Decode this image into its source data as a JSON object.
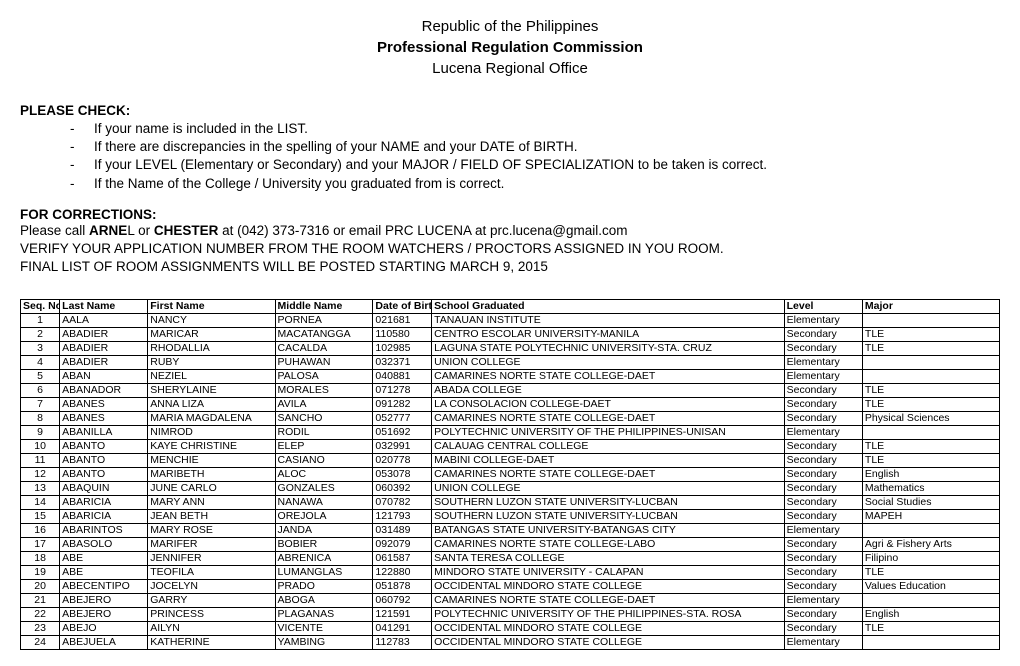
{
  "header": {
    "line1": "Republic of the Philippines",
    "line2": "Professional Regulation Commission",
    "line3": "Lucena Regional Office"
  },
  "check": {
    "title": "PLEASE CHECK:",
    "items": [
      "If your name is included in the LIST.",
      "If there are discrepancies in the spelling of your NAME and your DATE of BIRTH.",
      "If your LEVEL (Elementary or Secondary) and your MAJOR / FIELD OF SPECIALIZATION to be taken is correct.",
      "If the Name of the College / University you graduated from is correct."
    ]
  },
  "corrections": {
    "title": "FOR CORRECTIONS:",
    "line1_pre": "Please call ",
    "line1_b": "ARNE",
    "line1_mid": "L or ",
    "line1_b2": "CHESTER",
    "line1_post": " at (042) 373-7316 or email PRC LUCENA at prc.lucena@gmail.com",
    "line2": "VERIFY YOUR APPLICATION NUMBER FROM THE ROOM WATCHERS / PROCTORS ASSIGNED IN YOU ROOM.",
    "line3": "FINAL LIST OF ROOM ASSIGNMENTS WILL BE POSTED STARTING MARCH 9, 2015"
  },
  "table": {
    "columns": [
      "Seq. No",
      "Last Name",
      "First Name",
      "Middle Name",
      "Date of Birth",
      "School Graduated",
      "Level",
      "Major"
    ],
    "rows": [
      [
        "1",
        "AALA",
        "NANCY",
        "PORNEA",
        "021681",
        "TANAUAN INSTITUTE",
        "Elementary",
        ""
      ],
      [
        "2",
        "ABADIER",
        "MARICAR",
        "MACATANGGA",
        "110580",
        "CENTRO ESCOLAR UNIVERSITY-MANILA",
        "Secondary",
        "TLE"
      ],
      [
        "3",
        "ABADIER",
        "RHODALLIA",
        "CACALDA",
        "102985",
        "LAGUNA STATE POLYTECHNIC UNIVERSITY-STA. CRUZ",
        "Secondary",
        "TLE"
      ],
      [
        "4",
        "ABADIER",
        "RUBY",
        "PUHAWAN",
        "032371",
        "UNION COLLEGE",
        "Elementary",
        ""
      ],
      [
        "5",
        "ABAN",
        "NEZIEL",
        "PALOSA",
        "040881",
        "CAMARINES NORTE STATE COLLEGE-DAET",
        "Elementary",
        ""
      ],
      [
        "6",
        "ABANADOR",
        "SHERYLAINE",
        "MORALES",
        "071278",
        "ABADA COLLEGE",
        "Secondary",
        "TLE"
      ],
      [
        "7",
        "ABANES",
        "ANNA LIZA",
        "AVILA",
        "091282",
        "LA CONSOLACION COLLEGE-DAET",
        "Secondary",
        "TLE"
      ],
      [
        "8",
        "ABANES",
        "MARIA MAGDALENA",
        "SANCHO",
        "052777",
        "CAMARINES NORTE STATE COLLEGE-DAET",
        "Secondary",
        "Physical Sciences"
      ],
      [
        "9",
        "ABANILLA",
        "NIMROD",
        "RODIL",
        "051692",
        "POLYTECHNIC UNIVERSITY OF THE PHILIPPINES-UNISAN",
        "Elementary",
        ""
      ],
      [
        "10",
        "ABANTO",
        "KAYE CHRISTINE",
        "ELEP",
        "032991",
        "CALAUAG CENTRAL COLLEGE",
        "Secondary",
        "TLE"
      ],
      [
        "11",
        "ABANTO",
        "MENCHIE",
        "CASIANO",
        "020778",
        "MABINI COLLEGE-DAET",
        "Secondary",
        "TLE"
      ],
      [
        "12",
        "ABANTO",
        "MARIBETH",
        "ALOC",
        "053078",
        "CAMARINES NORTE STATE COLLEGE-DAET",
        "Secondary",
        "English"
      ],
      [
        "13",
        "ABAQUIN",
        "JUNE CARLO",
        "GONZALES",
        "060392",
        "UNION COLLEGE",
        "Secondary",
        "Mathematics"
      ],
      [
        "14",
        "ABARICIA",
        "MARY ANN",
        "NANAWA",
        "070782",
        "SOUTHERN LUZON STATE UNIVERSITY-LUCBAN",
        "Secondary",
        "Social Studies"
      ],
      [
        "15",
        "ABARICIA",
        "JEAN BETH",
        "OREJOLA",
        "121793",
        "SOUTHERN LUZON STATE UNIVERSITY-LUCBAN",
        "Secondary",
        "MAPEH"
      ],
      [
        "16",
        "ABARINTOS",
        "MARY ROSE",
        "JANDA",
        "031489",
        "BATANGAS STATE UNIVERSITY-BATANGAS CITY",
        "Elementary",
        ""
      ],
      [
        "17",
        "ABASOLO",
        "MARIFER",
        "BOBIER",
        "092079",
        "CAMARINES NORTE STATE COLLEGE-LABO",
        "Secondary",
        "Agri & Fishery Arts"
      ],
      [
        "18",
        "ABE",
        "JENNIFER",
        "ABRENICA",
        "061587",
        "SANTA TERESA COLLEGE",
        "Secondary",
        "Filipino"
      ],
      [
        "19",
        "ABE",
        "TEOFILA",
        "LUMANGLAS",
        "122880",
        "MINDORO STATE UNIVERSITY - CALAPAN",
        "Secondary",
        "TLE"
      ],
      [
        "20",
        "ABECENTIPO",
        "JOCELYN",
        "PRADO",
        "051878",
        "OCCIDENTAL MINDORO STATE COLLEGE",
        "Secondary",
        "Values Education"
      ],
      [
        "21",
        "ABEJERO",
        "GARRY",
        "ABOGA",
        "060792",
        "CAMARINES NORTE STATE COLLEGE-DAET",
        "Elementary",
        ""
      ],
      [
        "22",
        "ABEJERO",
        "PRINCESS",
        "PLAGANAS",
        "121591",
        "POLYTECHNIC UNIVERSITY OF THE PHILIPPINES-STA. ROSA",
        "Secondary",
        "English"
      ],
      [
        "23",
        "ABEJO",
        "AILYN",
        "VICENTE",
        "041291",
        "OCCIDENTAL MINDORO STATE COLLEGE",
        "Secondary",
        "TLE"
      ],
      [
        "24",
        "ABEJUELA",
        "KATHERINE",
        "YAMBING",
        "112783",
        "OCCIDENTAL MINDORO STATE COLLEGE",
        "Elementary",
        ""
      ]
    ]
  }
}
